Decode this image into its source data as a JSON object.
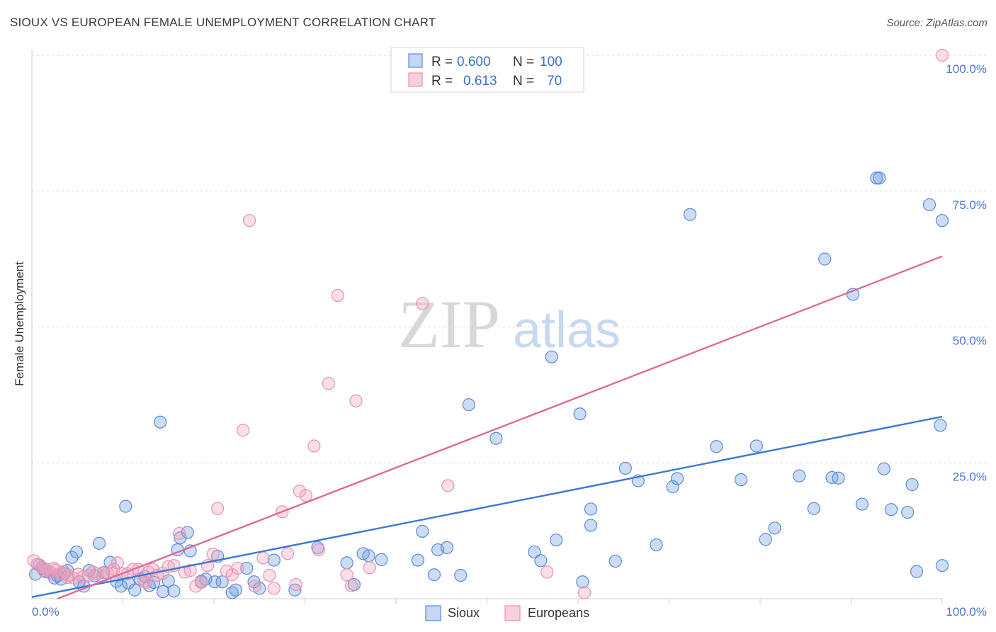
{
  "header": {
    "title": "SIOUX VS EUROPEAN FEMALE UNEMPLOYMENT CORRELATION CHART",
    "source": "Source: ZipAtlas.com"
  },
  "watermark": {
    "zip": "ZIP",
    "atlas": "atlas"
  },
  "legend": {
    "r_label": "R =",
    "n_label": "N =",
    "rows": [
      {
        "r": "0.600",
        "n": "100",
        "color": "#9dbdec"
      },
      {
        "r": "0.613",
        "n": "70",
        "color": "#f4afc4"
      }
    ]
  },
  "chart_data": {
    "type": "scatter",
    "title": "SIOUX VS EUROPEAN FEMALE UNEMPLOYMENT CORRELATION CHART",
    "xlabel": "",
    "ylabel": "Female Unemployment",
    "xlim": [
      0,
      100
    ],
    "ylim": [
      0,
      100
    ],
    "x_tick_labels": [
      "0.0%",
      "100.0%"
    ],
    "y_ticks": [
      25,
      50,
      75,
      100
    ],
    "y_tick_labels": [
      "25.0%",
      "50.0%",
      "75.0%",
      "100.0%"
    ],
    "grid": true,
    "legend_position": "top-center",
    "series": [
      {
        "name": "Sioux",
        "color": "#6d9be0",
        "stroke": "#5c8ad6",
        "line_color": "#3a78d4",
        "trend": {
          "x": [
            0,
            100
          ],
          "y": [
            0.3,
            33.5
          ]
        },
        "points": [
          [
            0.4,
            4.5
          ],
          [
            0.8,
            6.2
          ],
          [
            1.2,
            5.5
          ],
          [
            1.5,
            5.0
          ],
          [
            2.0,
            4.8
          ],
          [
            2.5,
            3.8
          ],
          [
            2.8,
            4.2
          ],
          [
            3.2,
            3.6
          ],
          [
            3.6,
            4.6
          ],
          [
            3.9,
            5.2
          ],
          [
            4.4,
            7.6
          ],
          [
            4.9,
            8.6
          ],
          [
            5.2,
            3.1
          ],
          [
            5.7,
            2.3
          ],
          [
            6.3,
            5.2
          ],
          [
            6.9,
            4.2
          ],
          [
            7.4,
            10.2
          ],
          [
            7.9,
            4.8
          ],
          [
            8.6,
            6.7
          ],
          [
            9.3,
            3.2
          ],
          [
            9.8,
            2.3
          ],
          [
            10.3,
            17.0
          ],
          [
            10.6,
            2.9
          ],
          [
            11.3,
            1.6
          ],
          [
            11.9,
            3.6
          ],
          [
            12.4,
            4.1
          ],
          [
            12.9,
            2.4
          ],
          [
            13.4,
            3.0
          ],
          [
            14.1,
            32.5
          ],
          [
            14.4,
            1.3
          ],
          [
            15.0,
            3.3
          ],
          [
            15.6,
            1.4
          ],
          [
            16.0,
            9.0
          ],
          [
            16.3,
            11.2
          ],
          [
            17.1,
            12.2
          ],
          [
            17.4,
            8.8
          ],
          [
            18.6,
            3.2
          ],
          [
            19.1,
            3.6
          ],
          [
            20.1,
            3.1
          ],
          [
            20.4,
            7.8
          ],
          [
            20.9,
            3.1
          ],
          [
            22.0,
            1.1
          ],
          [
            22.4,
            1.6
          ],
          [
            23.6,
            5.6
          ],
          [
            24.4,
            3.1
          ],
          [
            25.0,
            1.9
          ],
          [
            26.6,
            7.1
          ],
          [
            28.9,
            1.6
          ],
          [
            31.4,
            9.4
          ],
          [
            34.6,
            6.6
          ],
          [
            35.4,
            2.6
          ],
          [
            36.4,
            8.3
          ],
          [
            37.0,
            7.9
          ],
          [
            38.4,
            7.2
          ],
          [
            42.4,
            7.1
          ],
          [
            42.9,
            12.4
          ],
          [
            44.2,
            4.4
          ],
          [
            44.6,
            9.0
          ],
          [
            45.6,
            9.4
          ],
          [
            47.1,
            4.3
          ],
          [
            48.0,
            35.7
          ],
          [
            51.0,
            29.5
          ],
          [
            55.2,
            8.6
          ],
          [
            55.9,
            7.0
          ],
          [
            57.1,
            44.5
          ],
          [
            57.6,
            10.8
          ],
          [
            60.2,
            34.0
          ],
          [
            60.5,
            3.1
          ],
          [
            61.4,
            16.5
          ],
          [
            64.1,
            6.9
          ],
          [
            65.2,
            24.0
          ],
          [
            66.6,
            21.7
          ],
          [
            68.6,
            9.9
          ],
          [
            70.4,
            20.6
          ],
          [
            70.9,
            22.1
          ],
          [
            72.3,
            70.7
          ],
          [
            75.2,
            28.0
          ],
          [
            77.9,
            21.9
          ],
          [
            79.6,
            28.1
          ],
          [
            80.6,
            10.9
          ],
          [
            81.6,
            13.0
          ],
          [
            84.3,
            22.6
          ],
          [
            85.9,
            16.6
          ],
          [
            87.1,
            62.5
          ],
          [
            87.9,
            22.3
          ],
          [
            88.6,
            22.2
          ],
          [
            90.2,
            56.0
          ],
          [
            91.2,
            17.4
          ],
          [
            92.8,
            77.4
          ],
          [
            93.1,
            77.4
          ],
          [
            93.6,
            23.9
          ],
          [
            94.4,
            16.4
          ],
          [
            96.2,
            15.9
          ],
          [
            96.7,
            21.0
          ],
          [
            97.2,
            5.0
          ],
          [
            98.6,
            72.5
          ],
          [
            100.0,
            6.1
          ],
          [
            99.8,
            31.9
          ],
          [
            100.0,
            69.6
          ],
          [
            61.4,
            13.5
          ]
        ]
      },
      {
        "name": "Europeans",
        "color": "#f4a3bd",
        "stroke": "#e891ae",
        "line_color": "#e06a95",
        "trend": {
          "x": [
            2.8,
            100
          ],
          "y": [
            0,
            63
          ]
        },
        "points": [
          [
            0.2,
            7.0
          ],
          [
            0.6,
            6.3
          ],
          [
            1.1,
            5.8
          ],
          [
            1.6,
            5.4
          ],
          [
            2.1,
            4.8
          ],
          [
            2.6,
            5.3
          ],
          [
            3.1,
            4.6
          ],
          [
            3.5,
            5.0
          ],
          [
            4.0,
            4.3
          ],
          [
            4.6,
            3.8
          ],
          [
            5.1,
            4.5
          ],
          [
            5.6,
            4.0
          ],
          [
            6.2,
            4.3
          ],
          [
            6.7,
            4.9
          ],
          [
            7.2,
            4.6
          ],
          [
            7.8,
            4.1
          ],
          [
            8.3,
            4.7
          ],
          [
            8.8,
            5.1
          ],
          [
            9.4,
            6.6
          ],
          [
            9.9,
            4.6
          ],
          [
            10.5,
            4.6
          ],
          [
            11.1,
            5.4
          ],
          [
            11.7,
            5.4
          ],
          [
            12.3,
            3.2
          ],
          [
            12.8,
            4.9
          ],
          [
            13.3,
            5.4
          ],
          [
            13.8,
            4.3
          ],
          [
            14.4,
            4.7
          ],
          [
            15.0,
            5.9
          ],
          [
            15.6,
            6.1
          ],
          [
            16.2,
            12.0
          ],
          [
            16.8,
            4.9
          ],
          [
            17.4,
            5.2
          ],
          [
            18.0,
            2.3
          ],
          [
            18.6,
            3.0
          ],
          [
            19.3,
            6.1
          ],
          [
            19.9,
            8.2
          ],
          [
            20.4,
            16.6
          ],
          [
            21.4,
            5.1
          ],
          [
            22.0,
            4.4
          ],
          [
            22.6,
            5.6
          ],
          [
            23.2,
            31.0
          ],
          [
            23.9,
            69.6
          ],
          [
            24.5,
            2.3
          ],
          [
            25.4,
            7.5
          ],
          [
            26.1,
            4.3
          ],
          [
            26.6,
            1.9
          ],
          [
            27.5,
            16.0
          ],
          [
            28.1,
            8.3
          ],
          [
            29.0,
            2.6
          ],
          [
            29.4,
            19.8
          ],
          [
            30.1,
            19.0
          ],
          [
            31.0,
            28.1
          ],
          [
            31.5,
            9.0
          ],
          [
            32.6,
            39.6
          ],
          [
            33.6,
            55.8
          ],
          [
            34.6,
            4.4
          ],
          [
            35.1,
            2.4
          ],
          [
            35.6,
            36.4
          ],
          [
            37.1,
            5.7
          ],
          [
            42.9,
            54.3
          ],
          [
            45.7,
            20.8
          ],
          [
            56.6,
            4.9
          ],
          [
            60.7,
            1.1
          ],
          [
            100.0,
            100.0
          ],
          [
            1.3,
            5.2
          ],
          [
            2.4,
            5.6
          ],
          [
            3.9,
            3.9
          ],
          [
            9.0,
            5.4
          ],
          [
            12.5,
            3.0
          ]
        ]
      }
    ]
  }
}
